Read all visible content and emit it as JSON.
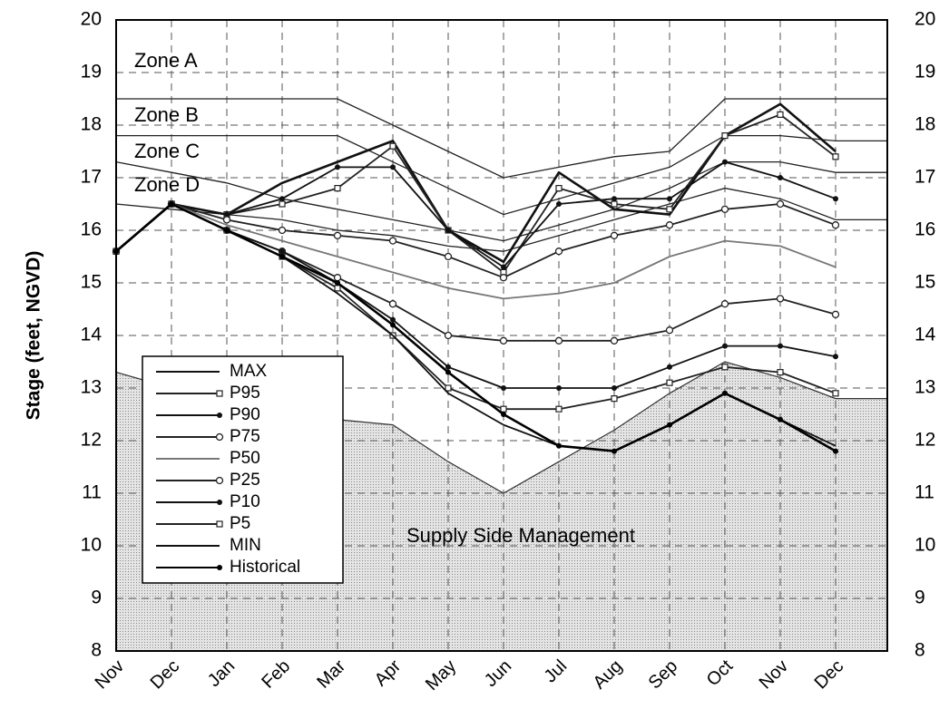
{
  "chart_data": {
    "type": "line",
    "y_label": "Stage (feet, NGVD)",
    "categories": [
      "Nov",
      "Dec",
      "Jan",
      "Feb",
      "Mar",
      "Apr",
      "May",
      "Jun",
      "Jul",
      "Aug",
      "Sep",
      "Oct",
      "Nov",
      "Dec"
    ],
    "ylim": [
      8,
      20
    ],
    "yticks": [
      8,
      9,
      10,
      11,
      12,
      13,
      14,
      15,
      16,
      17,
      18,
      19,
      20
    ],
    "y2lim": [
      8,
      20
    ],
    "y2ticks": [
      8,
      9,
      10,
      11,
      12,
      13,
      14,
      15,
      16,
      17,
      18,
      19,
      20
    ],
    "grid": true,
    "legend": "lower left",
    "annotations": [
      "Zone A",
      "Zone B",
      "Zone C",
      "Zone D",
      "Supply Side Management"
    ],
    "boundaries": [
      {
        "values": [
          18.5,
          18.5,
          18.5,
          18.5,
          18.5,
          18.0,
          17.5,
          17.0,
          17.2,
          17.4,
          17.5,
          18.5,
          18.5,
          18.5
        ]
      },
      {
        "values": [
          17.8,
          17.8,
          17.8,
          17.8,
          17.8,
          17.3,
          16.8,
          16.3,
          16.6,
          16.9,
          17.2,
          17.8,
          17.8,
          17.7
        ]
      },
      {
        "values": [
          17.3,
          17.1,
          16.9,
          16.6,
          16.4,
          16.2,
          16.0,
          15.8,
          16.1,
          16.4,
          16.8,
          17.3,
          17.3,
          17.1
        ]
      },
      {
        "values": [
          16.5,
          16.4,
          16.3,
          16.2,
          16.0,
          15.9,
          15.7,
          15.6,
          15.9,
          16.2,
          16.5,
          16.8,
          16.6,
          16.2
        ]
      }
    ],
    "supply_floor": [
      13.3,
      13.0,
      12.7,
      12.5,
      12.4,
      12.3,
      11.6,
      11.0,
      11.6,
      12.2,
      12.9,
      13.5,
      13.2,
      12.8
    ],
    "series": [
      {
        "name": "MAX",
        "color": "#111",
        "marker": "none",
        "values": [
          15.6,
          16.5,
          16.3,
          16.9,
          17.3,
          17.7,
          16.0,
          15.4,
          17.1,
          16.4,
          16.3,
          17.8,
          18.4,
          17.5
        ]
      },
      {
        "name": "P95",
        "color": "#222",
        "marker": "square",
        "values": [
          15.6,
          16.5,
          16.3,
          16.5,
          16.8,
          17.6,
          16.0,
          15.2,
          16.8,
          16.5,
          16.4,
          17.8,
          18.2,
          17.4
        ]
      },
      {
        "name": "P90",
        "color": "#111",
        "marker": "dot",
        "values": [
          15.6,
          16.5,
          16.3,
          16.6,
          17.2,
          17.2,
          16.0,
          15.3,
          16.5,
          16.6,
          16.6,
          17.3,
          17.0,
          16.6
        ]
      },
      {
        "name": "P75",
        "color": "#222",
        "marker": "circle",
        "values": [
          15.6,
          16.5,
          16.2,
          16.0,
          15.9,
          15.8,
          15.5,
          15.1,
          15.6,
          15.9,
          16.1,
          16.4,
          16.5,
          16.1
        ]
      },
      {
        "name": "P50",
        "color": "#777",
        "marker": "none",
        "values": [
          15.6,
          16.5,
          16.1,
          15.8,
          15.5,
          15.2,
          14.9,
          14.7,
          14.8,
          15.0,
          15.5,
          15.8,
          15.7,
          15.3
        ]
      },
      {
        "name": "P25",
        "color": "#222",
        "marker": "circle",
        "values": [
          15.6,
          16.5,
          16.0,
          15.6,
          15.1,
          14.6,
          14.0,
          13.9,
          13.9,
          13.9,
          14.1,
          14.6,
          14.7,
          14.4
        ]
      },
      {
        "name": "P10",
        "color": "#111",
        "marker": "dot",
        "values": [
          15.6,
          16.5,
          16.0,
          15.6,
          15.0,
          14.3,
          13.4,
          13.0,
          13.0,
          13.0,
          13.4,
          13.8,
          13.8,
          13.6
        ]
      },
      {
        "name": "P5",
        "color": "#222",
        "marker": "square",
        "values": [
          15.6,
          16.5,
          16.0,
          15.5,
          14.9,
          14.0,
          13.0,
          12.6,
          12.6,
          12.8,
          13.1,
          13.4,
          13.3,
          12.9
        ]
      },
      {
        "name": "MIN",
        "color": "#111",
        "marker": "none",
        "values": [
          15.6,
          16.5,
          16.0,
          15.5,
          14.8,
          14.0,
          12.9,
          12.3,
          11.9,
          11.8,
          12.3,
          12.9,
          12.4,
          11.9
        ]
      },
      {
        "name": "Historical",
        "color": "#000",
        "marker": "dot",
        "values": [
          15.6,
          16.5,
          16.0,
          15.5,
          15.0,
          14.2,
          13.3,
          12.5,
          11.9,
          11.8,
          12.3,
          12.9,
          12.4,
          11.8
        ]
      }
    ]
  }
}
